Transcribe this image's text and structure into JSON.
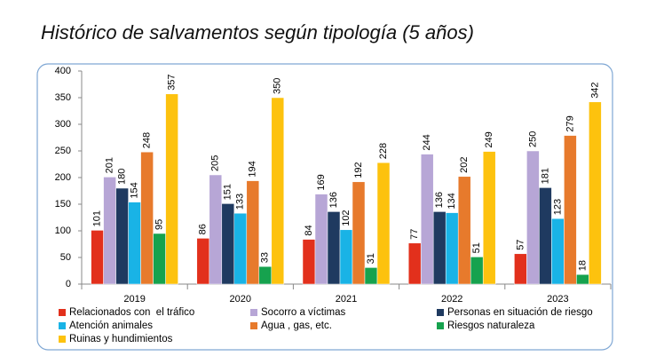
{
  "chart_data": {
    "type": "bar",
    "title": "Histórico de salvamentos según tipología (5 años)",
    "categories": [
      "2019",
      "2020",
      "2021",
      "2022",
      "2023"
    ],
    "series": [
      {
        "name": "Relacionados con  el tráfico",
        "color": "#e2301c",
        "values": [
          101,
          86,
          84,
          77,
          57
        ]
      },
      {
        "name": "Socorro a víctimas",
        "color": "#b7a6d6",
        "values": [
          201,
          205,
          169,
          244,
          250
        ]
      },
      {
        "name": "Personas en situación de riesgo",
        "color": "#1f3a60",
        "values": [
          180,
          151,
          136,
          136,
          181
        ]
      },
      {
        "name": "Atención animales",
        "color": "#19b3e6",
        "values": [
          154,
          133,
          102,
          134,
          123
        ]
      },
      {
        "name": "Agua , gas, etc.",
        "color": "#e77a2c",
        "values": [
          248,
          194,
          192,
          202,
          279
        ]
      },
      {
        "name": "Riesgos naturaleza",
        "color": "#16a24e",
        "values": [
          95,
          33,
          31,
          51,
          18
        ]
      },
      {
        "name": "Ruinas y hundimientos",
        "color": "#fdc20e",
        "values": [
          357,
          350,
          228,
          249,
          342
        ]
      }
    ],
    "ylim": [
      0,
      400
    ],
    "yticks": [
      0,
      50,
      100,
      150,
      200,
      250,
      300,
      350,
      400
    ],
    "grid": false
  }
}
